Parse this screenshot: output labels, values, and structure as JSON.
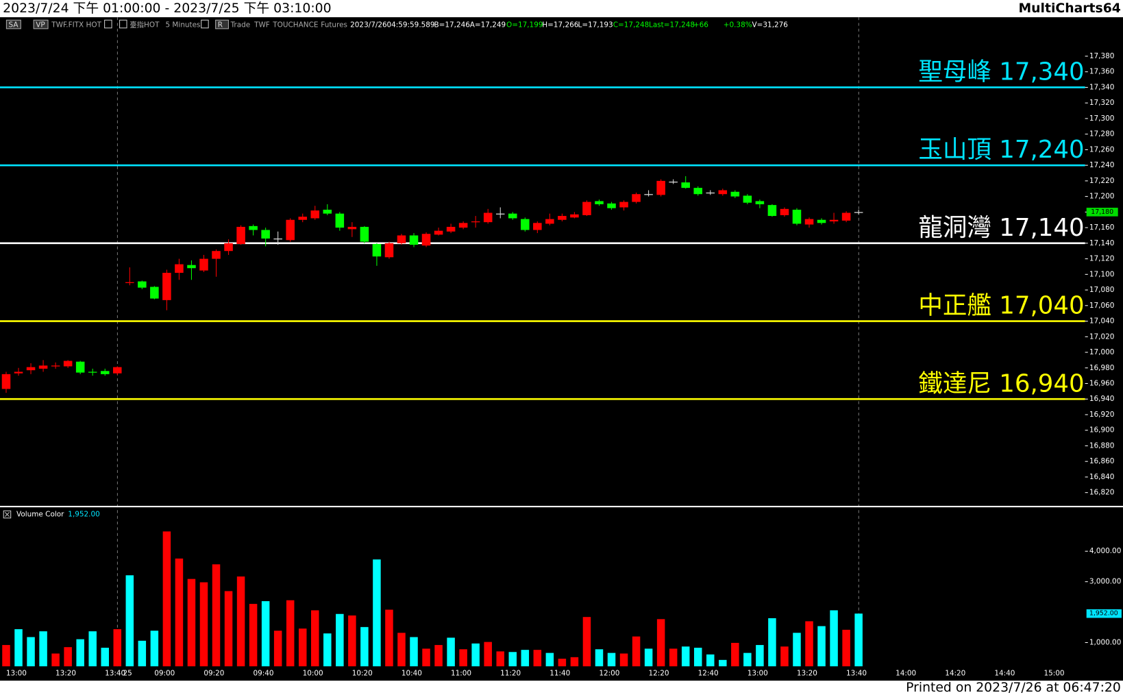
{
  "header": {
    "range": "2023/7/24 下午 01:00:00 - 2023/7/25 下午 03:10:00",
    "app": "MultiCharts64"
  },
  "toolbar": [
    {
      "text": "SA",
      "color": "#dddddd"
    },
    {
      "text": "VP",
      "color": "#dddddd"
    },
    {
      "text": "TWF.FITX HOT",
      "color": "#aaaaaa"
    },
    {
      "text": "臺指HOT",
      "color": "#aaaaaa"
    },
    {
      "text": "5 Minutes",
      "color": "#aaaaaa"
    },
    {
      "text": "R",
      "color": "#dddddd"
    },
    {
      "text": "Trade",
      "color": "#aaaaaa"
    },
    {
      "text": "TWF",
      "color": "#aaaaaa"
    },
    {
      "text": "TOUCHANCE",
      "color": "#aaaaaa"
    },
    {
      "text": "Futures",
      "color": "#aaaaaa"
    },
    {
      "text": "2023/7/26",
      "color": "#ffffff"
    },
    {
      "text": "04:59:59.589",
      "color": "#ffffff"
    },
    {
      "text": "B=17,246",
      "color": "#ffffff"
    },
    {
      "text": "A=17,249",
      "color": "#ffffff"
    },
    {
      "text": "O=17,199",
      "color": "#00ff00"
    },
    {
      "text": "H=17,266",
      "color": "#ffffff"
    },
    {
      "text": "L=17,193",
      "color": "#ffffff"
    },
    {
      "text": "C=17,248",
      "color": "#00ff00"
    },
    {
      "text": "Last=17,248",
      "color": "#00ff00"
    },
    {
      "text": "+66",
      "color": "#00ff00"
    },
    {
      "text": "+0.38%",
      "color": "#00ff00"
    },
    {
      "text": "V=31,276",
      "color": "#ffffff"
    }
  ],
  "footer": "Printed on 2023/7/26 at 06:47:20",
  "chart_data": [
    {
      "type": "candlestick",
      "categories": [
        null,
        "13:00",
        null,
        null,
        null,
        "13:20",
        null,
        null,
        null,
        "13:40",
        "25",
        null,
        null,
        "09:00",
        null,
        null,
        null,
        "09:20",
        null,
        null,
        null,
        "09:40",
        null,
        null,
        null,
        "10:00",
        null,
        null,
        null,
        "10:20",
        null,
        null,
        null,
        "10:40",
        null,
        null,
        null,
        "11:00",
        null,
        null,
        null,
        "11:20",
        null,
        null,
        null,
        "11:40",
        null,
        null,
        null,
        "12:00",
        null,
        null,
        null,
        "12:20",
        null,
        null,
        null,
        "12:40",
        null,
        null,
        null,
        "13:00",
        null,
        null,
        null,
        "13:20",
        null,
        null,
        null,
        "13:40",
        null,
        null,
        null,
        "14:00",
        null,
        null,
        null,
        "14:20",
        null,
        null,
        null,
        "14:40",
        null,
        null,
        null,
        "15:00"
      ],
      "open": [
        16953,
        16973,
        16977,
        16979,
        16982,
        16982,
        16988,
        16975,
        16976,
        16973,
        17089,
        17091,
        17084,
        17067,
        17102,
        17112,
        17105,
        17120,
        17130,
        17139,
        17162,
        17157,
        17146,
        17144,
        17170,
        17172,
        17183,
        17178,
        17158,
        17161,
        17139,
        17122,
        17140,
        17150,
        17137,
        17151,
        17155,
        17160,
        17167,
        17167,
        17178,
        17178,
        17171,
        17157,
        17165,
        17170,
        17173,
        17176,
        17194,
        17191,
        17186,
        17193,
        17203,
        17202,
        17219,
        17218,
        17211,
        17205,
        17203,
        17206,
        17201,
        17194,
        17189,
        17176,
        17183,
        17164,
        17170,
        17168,
        17169,
        17180,
        null,
        null,
        null,
        null,
        null,
        null,
        null,
        null,
        null,
        null,
        null,
        null,
        null,
        null,
        null,
        null
      ],
      "high": [
        16975,
        16980,
        16986,
        16990,
        16987,
        16990,
        16989,
        16979,
        16979,
        16982,
        17109,
        17092,
        17085,
        17106,
        17120,
        17118,
        17125,
        17132,
        17145,
        17163,
        17164,
        17160,
        17155,
        17172,
        17178,
        17188,
        17190,
        17180,
        17167,
        17162,
        17140,
        17142,
        17152,
        17153,
        17154,
        17160,
        17165,
        17168,
        17175,
        17184,
        17186,
        17180,
        17173,
        17168,
        17178,
        17178,
        17180,
        17195,
        17196,
        17193,
        17195,
        17205,
        17208,
        17222,
        17222,
        17226,
        17213,
        17208,
        17210,
        17208,
        17203,
        17196,
        17190,
        17186,
        17185,
        17173,
        17172,
        17179,
        17181,
        17183,
        null,
        null,
        null,
        null,
        null,
        null,
        null,
        null,
        null,
        null,
        null,
        null,
        null,
        null,
        null,
        null
      ],
      "low": [
        16948,
        16970,
        16972,
        16975,
        16979,
        16980,
        16972,
        16970,
        16970,
        16971,
        17086,
        17081,
        17068,
        17054,
        17093,
        17093,
        17103,
        17097,
        17125,
        17138,
        17150,
        17136,
        17138,
        17142,
        17167,
        17170,
        17176,
        17156,
        17148,
        17140,
        17111,
        17120,
        17138,
        17135,
        17135,
        17150,
        17153,
        17158,
        17160,
        17165,
        17172,
        17170,
        17155,
        17153,
        17163,
        17168,
        17172,
        17175,
        17188,
        17183,
        17182,
        17191,
        17200,
        17200,
        17216,
        17210,
        17201,
        17202,
        17201,
        17198,
        17190,
        17185,
        17174,
        17174,
        17163,
        17160,
        17164,
        17165,
        17167,
        17177,
        null,
        null,
        null,
        null,
        null,
        null,
        null,
        null,
        null,
        null,
        null,
        null,
        null,
        null,
        null,
        null
      ],
      "close": [
        16972,
        16975,
        16981,
        16983,
        16983,
        16989,
        16974,
        16974,
        16972,
        16981,
        17090,
        17083,
        17069,
        17102,
        17113,
        17108,
        17120,
        17130,
        17140,
        17161,
        17157,
        17146,
        17146,
        17170,
        17174,
        17182,
        17178,
        17160,
        17161,
        17142,
        17123,
        17140,
        17150,
        17138,
        17152,
        17156,
        17161,
        17166,
        17168,
        17179,
        17178,
        17172,
        17157,
        17166,
        17171,
        17175,
        17177,
        17193,
        17190,
        17185,
        17193,
        17203,
        17203,
        17220,
        17219,
        17211,
        17203,
        17205,
        17208,
        17200,
        17192,
        17190,
        17175,
        17184,
        17165,
        17171,
        17166,
        17170,
        17179,
        17180,
        null,
        null,
        null,
        null,
        null,
        null,
        null,
        null,
        null,
        null,
        null,
        null,
        null,
        null,
        null,
        null
      ],
      "up_color": "#ff0000",
      "down_color": "#00ff00",
      "doji_color": "#dddddd",
      "ylim": [
        16803,
        17430
      ],
      "yticks": [
        {
          "value": 17380,
          "label": "17,380"
        },
        {
          "value": 17360,
          "label": "17,360"
        },
        {
          "value": 17340,
          "label": "17,340"
        },
        {
          "value": 17320,
          "label": "17,320"
        },
        {
          "value": 17300,
          "label": "17,300"
        },
        {
          "value": 17280,
          "label": "17,280"
        },
        {
          "value": 17260,
          "label": "17,260"
        },
        {
          "value": 17240,
          "label": "17,240"
        },
        {
          "value": 17220,
          "label": "17,220"
        },
        {
          "value": 17200,
          "label": "17,200"
        },
        {
          "value": 17180,
          "label": "17,180"
        },
        {
          "value": 17160,
          "label": "17,160"
        },
        {
          "value": 17140,
          "label": "17,140"
        },
        {
          "value": 17120,
          "label": "17,120"
        },
        {
          "value": 17100,
          "label": "17,100"
        },
        {
          "value": 17080,
          "label": "17,080"
        },
        {
          "value": 17060,
          "label": "17,060"
        },
        {
          "value": 17040,
          "label": "17,040"
        },
        {
          "value": 17020,
          "label": "17,020"
        },
        {
          "value": 17000,
          "label": "17,000"
        },
        {
          "value": 16980,
          "label": "16,980"
        },
        {
          "value": 16960,
          "label": "16,960"
        },
        {
          "value": 16940,
          "label": "16,940"
        },
        {
          "value": 16920,
          "label": "16,920"
        },
        {
          "value": 16900,
          "label": "16,900"
        },
        {
          "value": 16880,
          "label": "16,880"
        },
        {
          "value": 16860,
          "label": "16,860"
        },
        {
          "value": 16840,
          "label": "16,840"
        },
        {
          "value": 16820,
          "label": "16,820"
        }
      ],
      "levels": [
        {
          "name": "聖母峰",
          "value": 17340,
          "value_label": "17,340",
          "color": "#00e5ff"
        },
        {
          "name": "玉山頂",
          "value": 17240,
          "value_label": "17,240",
          "color": "#00e5ff"
        },
        {
          "name": "龍洞灣",
          "value": 17140,
          "value_label": "17,140",
          "color": "#ffffff"
        },
        {
          "name": "中正艦",
          "value": 17040,
          "value_label": "17,040",
          "color": "#ffff00"
        },
        {
          "name": "鐵達尼",
          "value": 16940,
          "value_label": "16,940",
          "color": "#ffff00"
        }
      ],
      "last_price": {
        "value": 17180,
        "label": "17,180",
        "color": "#00dd00"
      }
    },
    {
      "type": "bar",
      "title": "Volume Color",
      "values": [
        920,
        1440,
        1180,
        1370,
        640,
        850,
        1110,
        1370,
        830,
        1440,
        3210,
        1060,
        1390,
        4650,
        3760,
        3090,
        2980,
        3570,
        2690,
        3170,
        2270,
        2360,
        1390,
        2390,
        1460,
        2060,
        1300,
        1940,
        1890,
        1510,
        3730,
        2080,
        1320,
        1180,
        800,
        920,
        1160,
        780,
        970,
        1020,
        710,
        690,
        760,
        760,
        660,
        470,
        520,
        1840,
        780,
        660,
        640,
        1200,
        800,
        1770,
        800,
        870,
        830,
        610,
        430,
        990,
        660,
        920,
        1800,
        870,
        1320,
        1700,
        1540,
        2060,
        1420,
        1952,
        null,
        null,
        null,
        null,
        null,
        null,
        null,
        null,
        null,
        null,
        null,
        null,
        null,
        null,
        null,
        null
      ],
      "colors": [
        "#ff0000",
        "#00ffff",
        "#00ffff",
        "#00ffff",
        "#ff0000",
        "#ff0000",
        "#00ffff",
        "#00ffff",
        "#00ffff",
        "#ff0000",
        "#00ffff",
        "#00ffff",
        "#00ffff",
        "#ff0000",
        "#ff0000",
        "#ff0000",
        "#ff0000",
        "#ff0000",
        "#ff0000",
        "#ff0000",
        "#ff0000",
        "#00ffff",
        "#ff0000",
        "#ff0000",
        "#ff0000",
        "#ff0000",
        "#00ffff",
        "#00ffff",
        "#ff0000",
        "#00ffff",
        "#00ffff",
        "#ff0000",
        "#ff0000",
        "#00ffff",
        "#ff0000",
        "#ff0000",
        "#00ffff",
        "#ff0000",
        "#00ffff",
        "#ff0000",
        "#ff0000",
        "#00ffff",
        "#00ffff",
        "#ff0000",
        "#00ffff",
        "#ff0000",
        "#ff0000",
        "#ff0000",
        "#00ffff",
        "#00ffff",
        "#ff0000",
        "#ff0000",
        "#00ffff",
        "#ff0000",
        "#ff0000",
        "#00ffff",
        "#00ffff",
        "#00ffff",
        "#00ffff",
        "#ff0000",
        "#00ffff",
        "#00ffff",
        "#00ffff",
        "#ff0000",
        "#00ffff",
        "#ff0000",
        "#00ffff",
        "#00ffff",
        "#ff0000",
        "#00ffff",
        null,
        null,
        null,
        null,
        null,
        null,
        null,
        null,
        null,
        null,
        null,
        null,
        null,
        null,
        null,
        null
      ],
      "ylim": [
        220,
        5350
      ],
      "yticks": [
        {
          "value": 4000,
          "label": "4,000.00"
        },
        {
          "value": 3000,
          "label": "3,000.00"
        },
        {
          "value": 1000,
          "label": "1,000.00"
        }
      ],
      "last_value": {
        "value": 1952,
        "label": "1,952.00",
        "color": "#00e5ff"
      }
    }
  ]
}
